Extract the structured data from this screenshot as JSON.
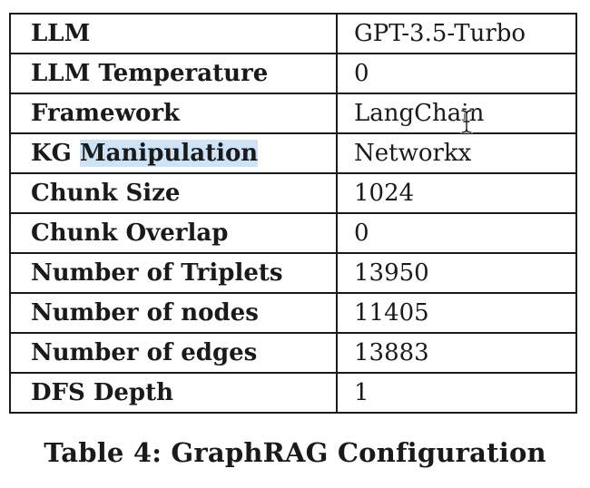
{
  "table": {
    "rows": [
      {
        "key": "LLM",
        "value": "GPT-3.5-Turbo"
      },
      {
        "key": "LLM Temperature",
        "value": "0"
      },
      {
        "key": "Framework",
        "value": "LangChain"
      },
      {
        "key_prefix": "KG ",
        "key_highlight": "Manipulation",
        "value": "Networkx"
      },
      {
        "key": "Chunk Size",
        "value": "1024"
      },
      {
        "key": "Chunk Overlap",
        "value": "0"
      },
      {
        "key": "Number of Triplets",
        "value": "13950"
      },
      {
        "key": "Number of nodes",
        "value": "11405"
      },
      {
        "key": "Number of edges",
        "value": "13883"
      },
      {
        "key": "DFS Depth",
        "value": "1"
      }
    ]
  },
  "caption": "Table 4: GraphRAG Configuration",
  "colors": {
    "selection_highlight": "#cfe3f7",
    "text": "#1a1a1a"
  },
  "icons": {
    "cursor": "text-cursor-icon"
  }
}
